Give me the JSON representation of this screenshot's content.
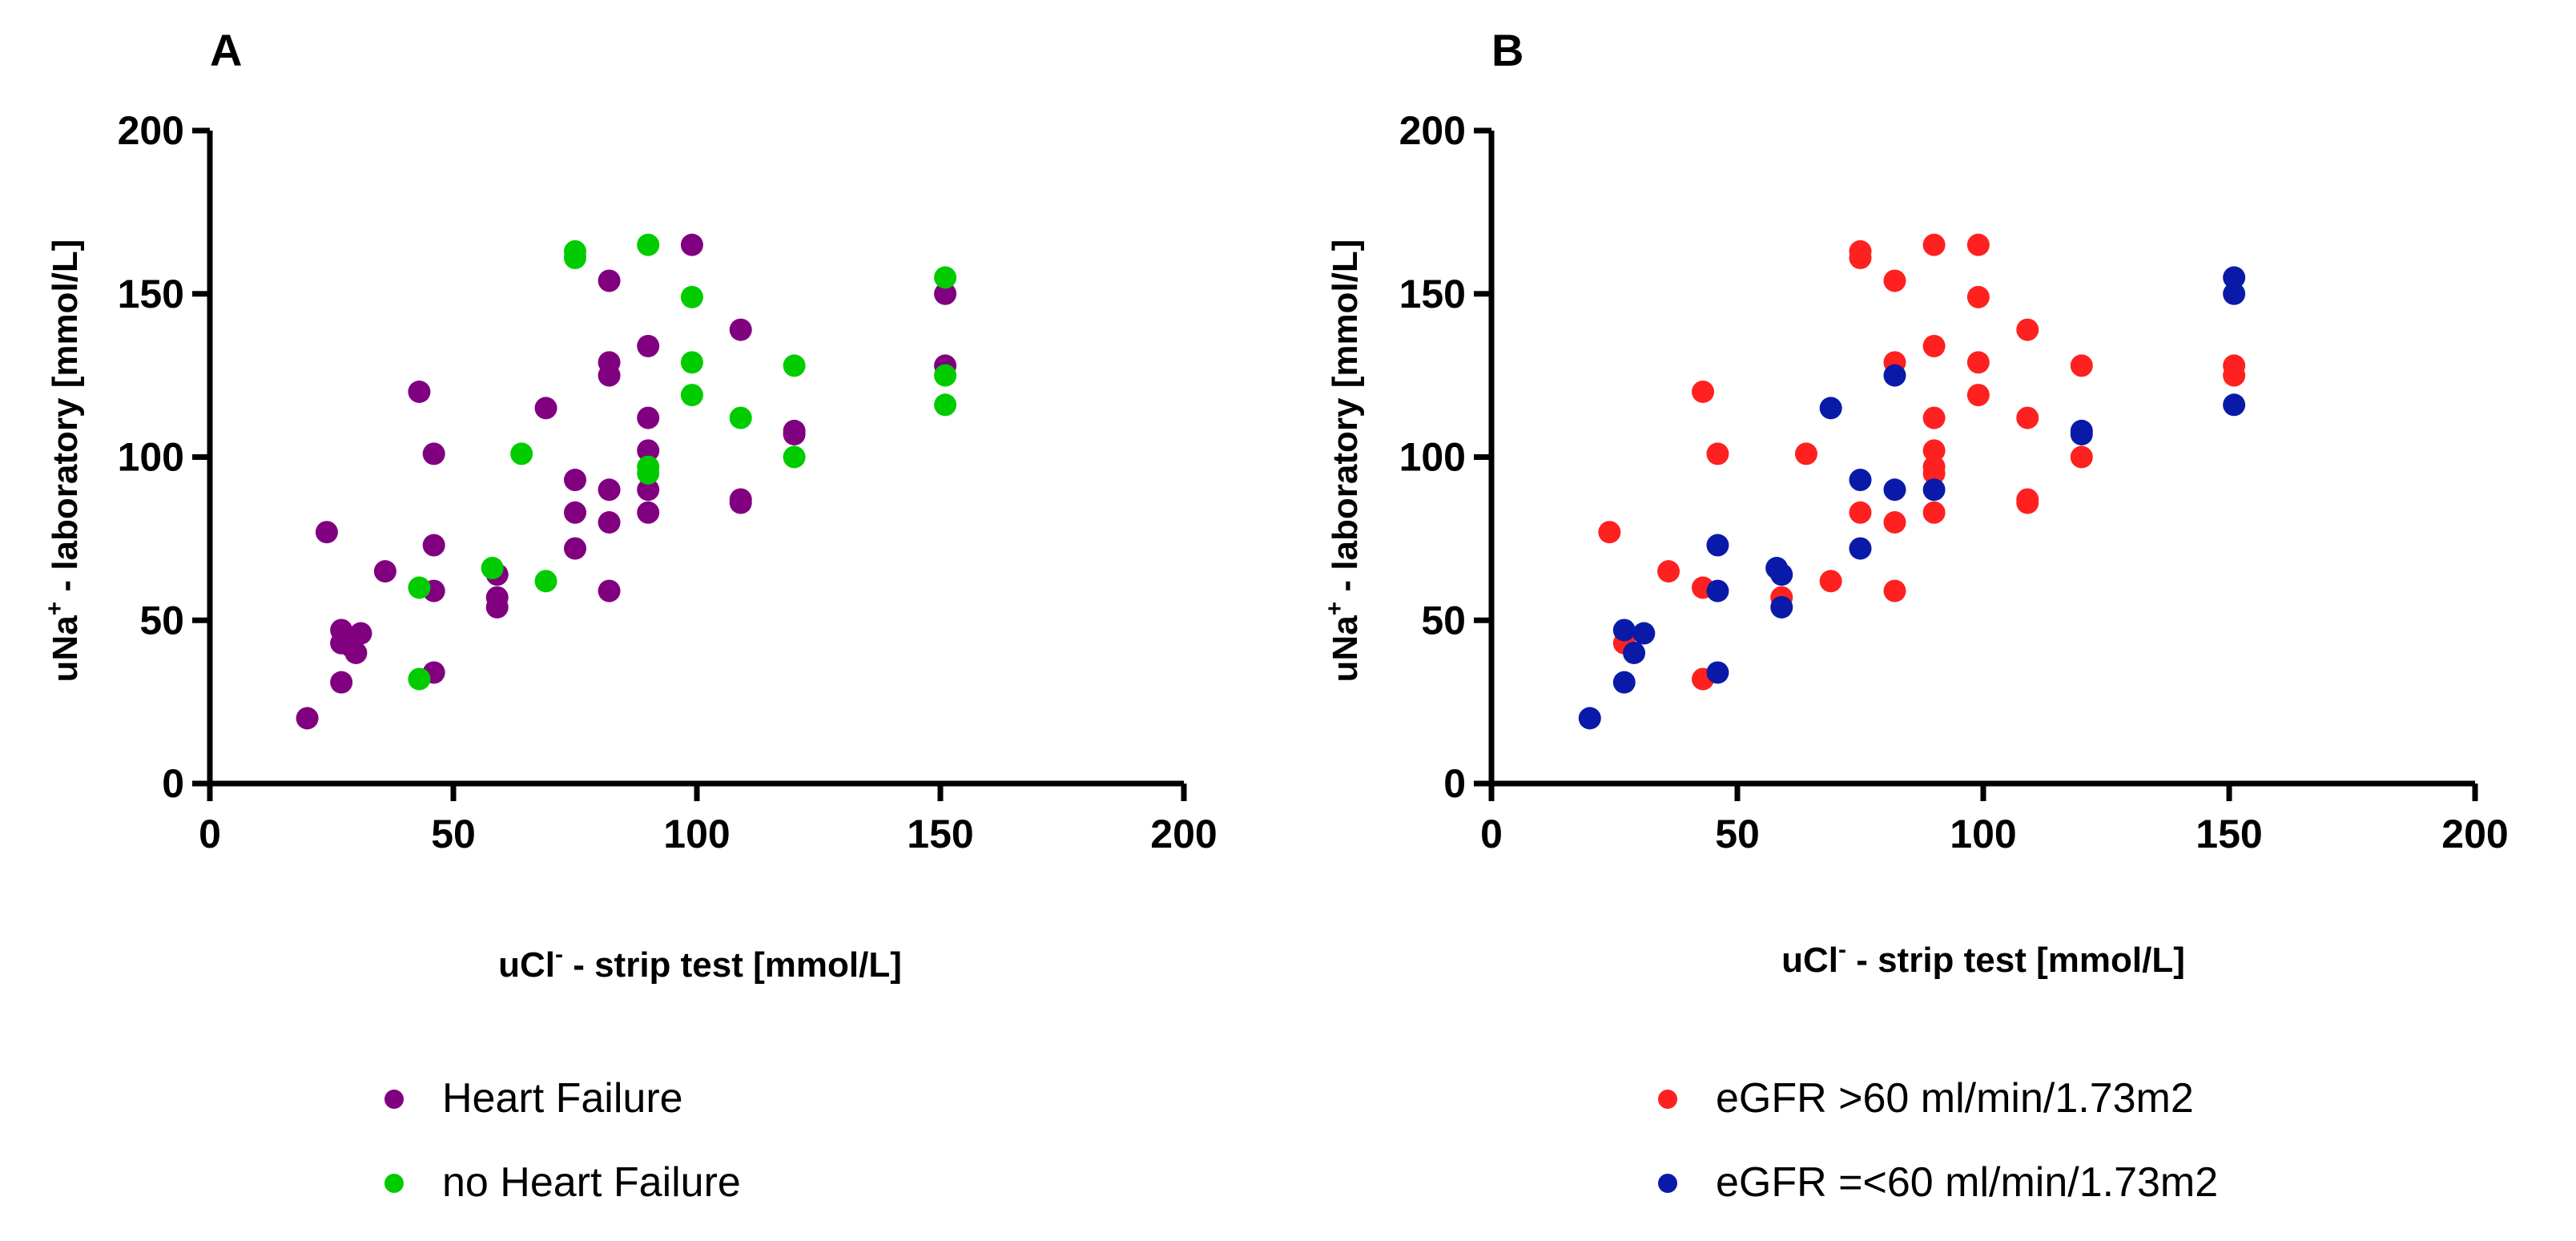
{
  "chart_data": [
    {
      "type": "scatter",
      "panel": "A",
      "xlabel_main": "uCl",
      "xlabel_sup": "-",
      "xlabel_rest": " - strip test [mmol/L]",
      "ylabel_main": "uNa",
      "ylabel_sup": "+",
      "ylabel_rest": " - laboratory [mmol/L]",
      "xlim": [
        0,
        200
      ],
      "ylim": [
        0,
        200
      ],
      "xticks": [
        0,
        50,
        100,
        150,
        200
      ],
      "yticks": [
        0,
        50,
        100,
        150,
        200
      ],
      "legend_position": "bottom",
      "series": [
        {
          "name": "Heart Failure",
          "color": "#800080",
          "points": [
            [
              20,
              20
            ],
            [
              24,
              77
            ],
            [
              27,
              47
            ],
            [
              27,
              43
            ],
            [
              27,
              31
            ],
            [
              29,
              42
            ],
            [
              30,
              40
            ],
            [
              31,
              46
            ],
            [
              36,
              65
            ],
            [
              43,
              120
            ],
            [
              46,
              101
            ],
            [
              46,
              73
            ],
            [
              46,
              59
            ],
            [
              46,
              34
            ],
            [
              59,
              64
            ],
            [
              59,
              57
            ],
            [
              59,
              54
            ],
            [
              69,
              115
            ],
            [
              75,
              93
            ],
            [
              75,
              83
            ],
            [
              75,
              72
            ],
            [
              82,
              154
            ],
            [
              82,
              129
            ],
            [
              82,
              125
            ],
            [
              82,
              90
            ],
            [
              82,
              80
            ],
            [
              82,
              59
            ],
            [
              90,
              134
            ],
            [
              90,
              112
            ],
            [
              90,
              102
            ],
            [
              90,
              90
            ],
            [
              90,
              83
            ],
            [
              99,
              165
            ],
            [
              109,
              139
            ],
            [
              109,
              87
            ],
            [
              109,
              86
            ],
            [
              120,
              108
            ],
            [
              120,
              107
            ],
            [
              151,
              150
            ],
            [
              151,
              128
            ]
          ]
        },
        {
          "name": "no Heart Failure",
          "color": "#00CC00",
          "points": [
            [
              43,
              60
            ],
            [
              43,
              32
            ],
            [
              58,
              66
            ],
            [
              64,
              101
            ],
            [
              69,
              62
            ],
            [
              75,
              163
            ],
            [
              75,
              161
            ],
            [
              90,
              165
            ],
            [
              90,
              97
            ],
            [
              90,
              95
            ],
            [
              99,
              149
            ],
            [
              99,
              129
            ],
            [
              99,
              119
            ],
            [
              109,
              112
            ],
            [
              120,
              128
            ],
            [
              120,
              100
            ],
            [
              151,
              155
            ],
            [
              151,
              125
            ],
            [
              151,
              116
            ]
          ]
        }
      ]
    },
    {
      "type": "scatter",
      "panel": "B",
      "xlabel_main": "uCl",
      "xlabel_sup": "-",
      "xlabel_rest": " - strip test [mmol/L]",
      "ylabel_main": "uNa",
      "ylabel_sup": "+",
      "ylabel_rest": " - laboratory [mmol/L]",
      "xlim": [
        0,
        200
      ],
      "ylim": [
        0,
        200
      ],
      "xticks": [
        0,
        50,
        100,
        150,
        200
      ],
      "yticks": [
        0,
        50,
        100,
        150,
        200
      ],
      "legend_position": "bottom",
      "series": [
        {
          "name": "eGFR >60 ml/min/1.73m2",
          "color": "#FF2020",
          "points": [
            [
              24,
              77
            ],
            [
              27,
              43
            ],
            [
              36,
              65
            ],
            [
              43,
              120
            ],
            [
              43,
              60
            ],
            [
              43,
              32
            ],
            [
              46,
              101
            ],
            [
              59,
              57
            ],
            [
              64,
              101
            ],
            [
              69,
              62
            ],
            [
              75,
              163
            ],
            [
              75,
              161
            ],
            [
              75,
              83
            ],
            [
              82,
              154
            ],
            [
              82,
              129
            ],
            [
              82,
              80
            ],
            [
              82,
              59
            ],
            [
              90,
              165
            ],
            [
              90,
              134
            ],
            [
              90,
              112
            ],
            [
              90,
              102
            ],
            [
              90,
              97
            ],
            [
              90,
              95
            ],
            [
              90,
              83
            ],
            [
              99,
              165
            ],
            [
              99,
              149
            ],
            [
              99,
              129
            ],
            [
              99,
              119
            ],
            [
              109,
              139
            ],
            [
              109,
              112
            ],
            [
              109,
              87
            ],
            [
              109,
              86
            ],
            [
              120,
              128
            ],
            [
              120,
              100
            ],
            [
              151,
              128
            ],
            [
              151,
              125
            ]
          ]
        },
        {
          "name": "eGFR =<60 ml/min/1.73m2",
          "color": "#0A1AA8",
          "points": [
            [
              20,
              20
            ],
            [
              27,
              47
            ],
            [
              27,
              31
            ],
            [
              29,
              40
            ],
            [
              31,
              46
            ],
            [
              46,
              73
            ],
            [
              46,
              59
            ],
            [
              46,
              34
            ],
            [
              58,
              66
            ],
            [
              59,
              64
            ],
            [
              59,
              54
            ],
            [
              69,
              115
            ],
            [
              75,
              93
            ],
            [
              75,
              72
            ],
            [
              82,
              125
            ],
            [
              82,
              90
            ],
            [
              90,
              90
            ],
            [
              120,
              108
            ],
            [
              120,
              107
            ],
            [
              151,
              155
            ],
            [
              151,
              150
            ],
            [
              151,
              116
            ]
          ]
        }
      ]
    }
  ]
}
